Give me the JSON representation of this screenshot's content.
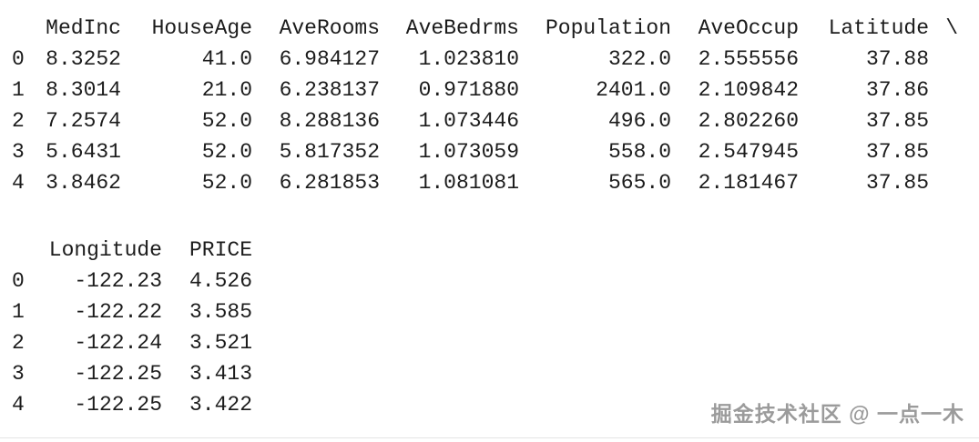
{
  "theme": {
    "background": "#ffffff",
    "text_color": "#1c1c1c",
    "watermark_color": "#9b9b9b",
    "divider_color": "#e4e4e4"
  },
  "output": {
    "kind": "pandas-dataframe-head",
    "block1": {
      "index_header": "",
      "continuation_char": "\\",
      "columns": [
        "MedInc",
        "HouseAge",
        "AveRooms",
        "AveBedrms",
        "Population",
        "AveOccup",
        "Latitude"
      ],
      "rows": [
        {
          "index": "0",
          "values": [
            "8.3252",
            "41.0",
            "6.984127",
            "1.023810",
            "322.0",
            "2.555556",
            "37.88"
          ]
        },
        {
          "index": "1",
          "values": [
            "8.3014",
            "21.0",
            "6.238137",
            "0.971880",
            "2401.0",
            "2.109842",
            "37.86"
          ]
        },
        {
          "index": "2",
          "values": [
            "7.2574",
            "52.0",
            "8.288136",
            "1.073446",
            "496.0",
            "2.802260",
            "37.85"
          ]
        },
        {
          "index": "3",
          "values": [
            "5.6431",
            "52.0",
            "5.817352",
            "1.073059",
            "558.0",
            "2.547945",
            "37.85"
          ]
        },
        {
          "index": "4",
          "values": [
            "3.8462",
            "52.0",
            "6.281853",
            "1.081081",
            "565.0",
            "2.181467",
            "37.85"
          ]
        }
      ]
    },
    "block2": {
      "index_header": "",
      "columns": [
        "Longitude",
        "PRICE"
      ],
      "rows": [
        {
          "index": "0",
          "values": [
            "-122.23",
            "4.526"
          ]
        },
        {
          "index": "1",
          "values": [
            "-122.22",
            "3.585"
          ]
        },
        {
          "index": "2",
          "values": [
            "-122.24",
            "3.521"
          ]
        },
        {
          "index": "3",
          "values": [
            "-122.25",
            "3.413"
          ]
        },
        {
          "index": "4",
          "values": [
            "-122.25",
            "3.422"
          ]
        }
      ]
    }
  },
  "watermark": {
    "text": "掘金技术社区 @ 一点一木"
  }
}
